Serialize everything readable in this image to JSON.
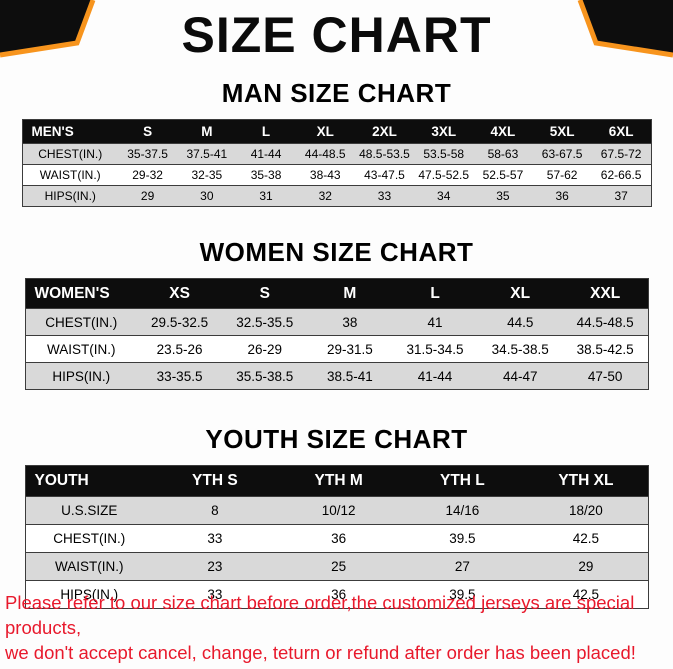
{
  "title": "SIZE CHART",
  "sections": [
    {
      "id": "men",
      "heading": "MAN SIZE CHART",
      "columns": [
        "MEN'S",
        "S",
        "M",
        "L",
        "XL",
        "2XL",
        "3XL",
        "4XL",
        "5XL",
        "6XL"
      ],
      "rows": [
        {
          "label": "CHEST(IN.)",
          "values": [
            "35-37.5",
            "37.5-41",
            "41-44",
            "44-48.5",
            "48.5-53.5",
            "53.5-58",
            "58-63",
            "63-67.5",
            "67.5-72"
          ]
        },
        {
          "label": "WAIST(IN.)",
          "values": [
            "29-32",
            "32-35",
            "35-38",
            "38-43",
            "43-47.5",
            "47.5-52.5",
            "52.5-57",
            "57-62",
            "62-66.5"
          ]
        },
        {
          "label": "HIPS(IN.)",
          "values": [
            "29",
            "30",
            "31",
            "32",
            "33",
            "34",
            "35",
            "36",
            "37"
          ]
        }
      ]
    },
    {
      "id": "women",
      "heading": "WOMEN SIZE CHART",
      "columns": [
        "WOMEN'S",
        "XS",
        "S",
        "M",
        "L",
        "XL",
        "XXL"
      ],
      "rows": [
        {
          "label": "CHEST(IN.)",
          "values": [
            "29.5-32.5",
            "32.5-35.5",
            "38",
            "41",
            "44.5",
            "44.5-48.5"
          ]
        },
        {
          "label": "WAIST(IN.)",
          "values": [
            "23.5-26",
            "26-29",
            "29-31.5",
            "31.5-34.5",
            "34.5-38.5",
            "38.5-42.5"
          ]
        },
        {
          "label": "HIPS(IN.)",
          "values": [
            "33-35.5",
            "35.5-38.5",
            "38.5-41",
            "41-44",
            "44-47",
            "47-50"
          ]
        }
      ]
    },
    {
      "id": "youth",
      "heading": "YOUTH SIZE CHART",
      "columns": [
        "YOUTH",
        "YTH S",
        "YTH M",
        "YTH L",
        "YTH XL"
      ],
      "rows": [
        {
          "label": "U.S.SIZE",
          "values": [
            "8",
            "10/12",
            "14/16",
            "18/20"
          ]
        },
        {
          "label": "CHEST(IN.)",
          "values": [
            "33",
            "36",
            "39.5",
            "42.5"
          ]
        },
        {
          "label": "WAIST(IN.)",
          "values": [
            "23",
            "25",
            "27",
            "29"
          ]
        },
        {
          "label": "HIPS(IN.)",
          "values": [
            "33",
            "36",
            "39.5",
            "42.5"
          ]
        }
      ]
    }
  ],
  "footer": {
    "line1": "Please refer to our size chart before order,the customized jerseys are special products,",
    "line2": "we don't accept cancel, change, teturn or refund after order has been placed!"
  },
  "colors": {
    "accent_orange": "#F7941D",
    "header_black": "#0d0d0d",
    "row_gray": "#d9d9d9",
    "footer_red": "#e8192c"
  }
}
